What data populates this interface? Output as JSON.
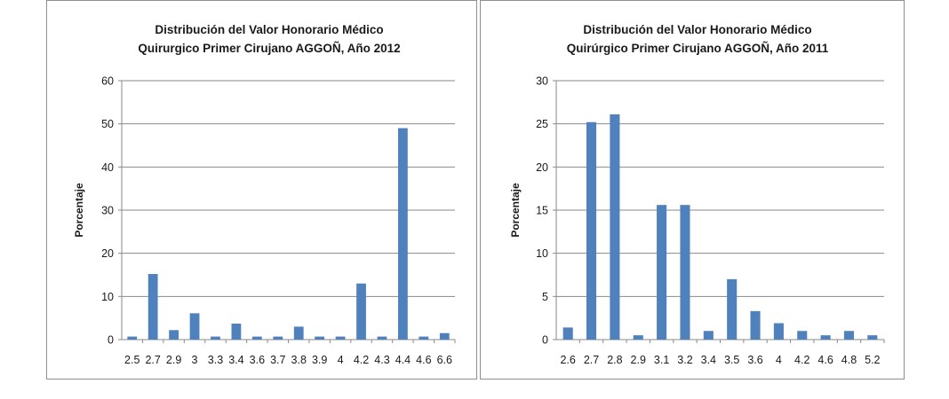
{
  "chart_data": [
    {
      "type": "bar",
      "title": [
        "Distribución del Valor Honorario Médico",
        "Quirurgico Primer Cirujano AGGOÑ, Año 2012"
      ],
      "xlabel": "",
      "ylabel": "Porcentaje",
      "ylim": [
        0,
        60
      ],
      "yticks": [
        0,
        10,
        20,
        30,
        40,
        50,
        60
      ],
      "grid": true,
      "color": "#4f81bd",
      "categories": [
        "2.5",
        "2.7",
        "2.9",
        "3",
        "3.3",
        "3.4",
        "3.6",
        "3.7",
        "3.8",
        "3.9",
        "4",
        "4.2",
        "4.3",
        "4.4",
        "4.6",
        "6.6"
      ],
      "values": [
        0.7,
        15.2,
        2.2,
        6.1,
        0.7,
        3.7,
        0.7,
        0.7,
        3.0,
        0.7,
        0.7,
        13.0,
        0.7,
        49.0,
        0.7,
        1.5
      ]
    },
    {
      "type": "bar",
      "title": [
        "Distribución del Valor Honorario Médico",
        "Quirúrgico Primer Cirujano AGGOÑ, Año 2011"
      ],
      "xlabel": "",
      "ylabel": "Porcentaje",
      "ylim": [
        0,
        30
      ],
      "yticks": [
        0,
        5,
        10,
        15,
        20,
        25,
        30
      ],
      "grid": true,
      "color": "#4f81bd",
      "categories": [
        "2.6",
        "2.7",
        "2.8",
        "2.9",
        "3.1",
        "3.2",
        "3.4",
        "3.5",
        "3.6",
        "4",
        "4.2",
        "4.6",
        "4.8",
        "5.2"
      ],
      "values": [
        1.4,
        25.2,
        26.1,
        0.5,
        15.6,
        15.6,
        1.0,
        7.0,
        3.3,
        1.9,
        1.0,
        0.5,
        1.0,
        0.5
      ]
    }
  ]
}
